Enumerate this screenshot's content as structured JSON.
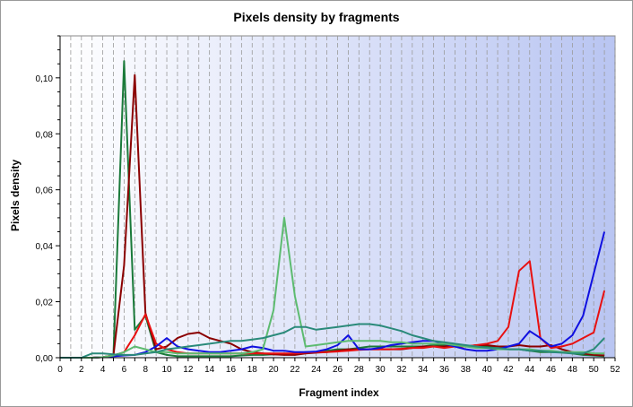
{
  "chart_data": {
    "type": "line",
    "title": "Pixels density by fragments",
    "xlabel": "Fragment index",
    "ylabel": "Pixels density",
    "xlim": [
      0,
      52
    ],
    "ylim": [
      0,
      0.115
    ],
    "x_ticks": [
      0,
      2,
      4,
      6,
      8,
      10,
      12,
      14,
      16,
      18,
      20,
      22,
      24,
      26,
      28,
      30,
      32,
      34,
      36,
      38,
      40,
      42,
      44,
      46,
      48,
      50,
      52
    ],
    "x_tick_labels": [
      "0",
      "2",
      "4",
      "6",
      "8",
      "10",
      "12",
      "14",
      "16",
      "18",
      "20",
      "22",
      "24",
      "26",
      "28",
      "30",
      "32",
      "34",
      "36",
      "38",
      "40",
      "42",
      "44",
      "46",
      "48",
      "50",
      "52"
    ],
    "y_ticks": [
      0,
      0.02,
      0.04,
      0.06,
      0.08,
      0.1
    ],
    "y_tick_labels": [
      "0,00",
      "0,02",
      "0,04",
      "0,06",
      "0,08",
      "0,10"
    ],
    "grid": "vertical dashed",
    "background": "gradient white to light blue",
    "x": [
      0,
      1,
      2,
      3,
      4,
      5,
      6,
      7,
      8,
      9,
      10,
      11,
      12,
      13,
      14,
      15,
      16,
      17,
      18,
      19,
      20,
      21,
      22,
      23,
      24,
      25,
      26,
      27,
      28,
      29,
      30,
      31,
      32,
      33,
      34,
      35,
      36,
      37,
      38,
      39,
      40,
      41,
      42,
      43,
      44,
      45,
      46,
      47,
      48,
      49,
      50,
      51
    ],
    "series": [
      {
        "color": "#1a7a3a",
        "values": [
          0,
          0,
          0,
          0,
          0.0002,
          0.0008,
          0.106,
          0.01,
          0.015,
          0.002,
          0.001,
          0.0005,
          0.0005,
          0.0005,
          0.0005,
          0.0005,
          0.0005,
          0.0008,
          0.001,
          0.001,
          0.0012,
          0.0012,
          0.0015,
          0.002,
          0.002,
          0.0025,
          0.003,
          0.003,
          0.0035,
          0.004,
          0.004,
          0.004,
          0.004,
          0.004,
          0.004,
          0.0045,
          0.0045,
          0.0045,
          0.004,
          0.004,
          0.004,
          0.0035,
          0.003,
          0.003,
          0.0025,
          0.002,
          0.002,
          0.002,
          0.0015,
          0.001,
          0.0008,
          0.0005
        ]
      },
      {
        "color": "#8b0000",
        "values": [
          0,
          0,
          0,
          0,
          0.0002,
          0.0008,
          0.033,
          0.101,
          0.016,
          0.003,
          0.004,
          0.007,
          0.0085,
          0.009,
          0.007,
          0.006,
          0.005,
          0.003,
          0.002,
          0.0015,
          0.0012,
          0.001,
          0.001,
          0.0015,
          0.0018,
          0.002,
          0.0025,
          0.003,
          0.003,
          0.003,
          0.003,
          0.003,
          0.003,
          0.0035,
          0.004,
          0.004,
          0.004,
          0.0045,
          0.004,
          0.0045,
          0.0045,
          0.004,
          0.004,
          0.0045,
          0.004,
          0.004,
          0.0045,
          0.003,
          0.002,
          0.0015,
          0.001,
          0.0008
        ]
      },
      {
        "color": "#e81010",
        "values": [
          0,
          0,
          0,
          0,
          0.0002,
          0.0008,
          0.002,
          0.008,
          0.0155,
          0.005,
          0.003,
          0.002,
          0.0015,
          0.0015,
          0.0015,
          0.0015,
          0.0015,
          0.0015,
          0.0015,
          0.0015,
          0.0015,
          0.0015,
          0.0015,
          0.0018,
          0.002,
          0.002,
          0.0022,
          0.0025,
          0.0028,
          0.003,
          0.003,
          0.003,
          0.0032,
          0.0035,
          0.0035,
          0.004,
          0.0035,
          0.004,
          0.004,
          0.0045,
          0.005,
          0.006,
          0.011,
          0.031,
          0.0345,
          0.007,
          0.0035,
          0.004,
          0.005,
          0.007,
          0.009,
          0.024
        ]
      },
      {
        "color": "#1010e0",
        "values": [
          0,
          0,
          0,
          0,
          0.0002,
          0.0005,
          0.0008,
          0.001,
          0.002,
          0.004,
          0.007,
          0.004,
          0.003,
          0.0025,
          0.002,
          0.002,
          0.0025,
          0.003,
          0.004,
          0.0035,
          0.0025,
          0.0025,
          0.002,
          0.002,
          0.0022,
          0.003,
          0.0045,
          0.008,
          0.003,
          0.003,
          0.0035,
          0.0045,
          0.005,
          0.0055,
          0.006,
          0.006,
          0.005,
          0.004,
          0.003,
          0.0025,
          0.0025,
          0.003,
          0.004,
          0.005,
          0.0095,
          0.007,
          0.004,
          0.005,
          0.008,
          0.015,
          0.03,
          0.045
        ]
      },
      {
        "color": "#5dbb70",
        "values": [
          0,
          0,
          0,
          0,
          0.0002,
          0.0008,
          0.002,
          0.004,
          0.003,
          0.002,
          0.002,
          0.0015,
          0.0015,
          0.0015,
          0.0015,
          0.0015,
          0.0015,
          0.0015,
          0.002,
          0.003,
          0.017,
          0.05,
          0.022,
          0.004,
          0.0045,
          0.005,
          0.0055,
          0.006,
          0.006,
          0.006,
          0.006,
          0.0055,
          0.0055,
          0.005,
          0.005,
          0.005,
          0.005,
          0.0045,
          0.004,
          0.0035,
          0.0035,
          0.003,
          0.003,
          0.003,
          0.003,
          0.0025,
          0.0025,
          0.002,
          0.002,
          0.002,
          0.0015,
          0.0015
        ]
      },
      {
        "color": "#2a8a7a",
        "values": [
          0,
          0,
          0,
          0.0015,
          0.0015,
          0.0012,
          0.001,
          0.001,
          0.0015,
          0.002,
          0.003,
          0.0035,
          0.004,
          0.0045,
          0.005,
          0.0055,
          0.006,
          0.006,
          0.0065,
          0.007,
          0.008,
          0.009,
          0.011,
          0.011,
          0.01,
          0.0105,
          0.011,
          0.0115,
          0.012,
          0.012,
          0.0115,
          0.0105,
          0.0095,
          0.008,
          0.007,
          0.006,
          0.0055,
          0.005,
          0.0045,
          0.004,
          0.0035,
          0.0035,
          0.003,
          0.003,
          0.0025,
          0.0025,
          0.002,
          0.0018,
          0.0015,
          0.0015,
          0.003,
          0.007
        ]
      }
    ]
  }
}
